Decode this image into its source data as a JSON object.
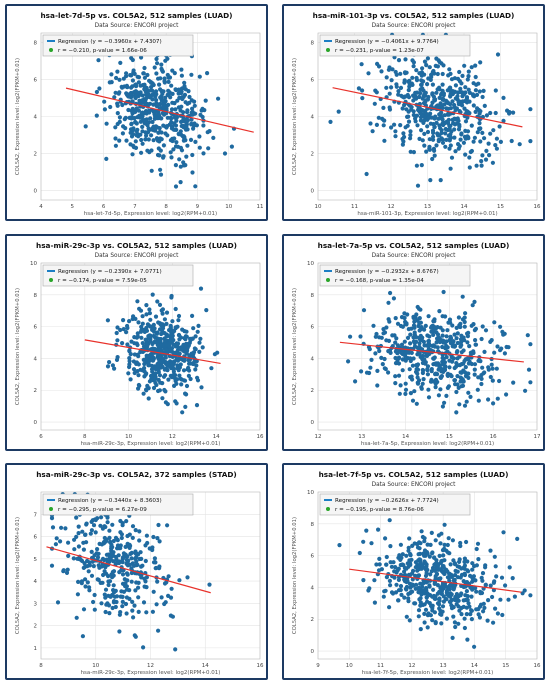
{
  "colors": {
    "point": "#1f6aa0",
    "line": "#e8322b",
    "border": "#1d3a63",
    "grid": "#e4e4e4",
    "legend_bg": "#f5f5f5"
  },
  "chart_data": [
    {
      "type": "scatter",
      "title": "hsa-let-7d-5p vs. COL5A2, 512 samples (LUAD)",
      "subtitle": "Data Source: ENCORI project",
      "xlabel": "hsa-let-7d-5p, Expression level: log2(RPM+0.01)",
      "ylabel": "COL5A2, Expression level: log2(FPKM+0.01)",
      "xlim": [
        4,
        11
      ],
      "ylim": [
        -0.5,
        8.5
      ],
      "xticks": [
        "4",
        "5",
        "6",
        "7",
        "8",
        "9",
        "10",
        "11"
      ],
      "yticks": [
        "0",
        "2",
        "4",
        "6",
        "8"
      ],
      "grid": true,
      "legend_position": "top-left",
      "legend": [
        "Regression (y = −0.3960x + 7.4307)",
        "r = −0.210, p-value = 1.66e-06"
      ],
      "regression": {
        "slope": -0.396,
        "intercept": 7.4307,
        "x_range": [
          4.8,
          10.8
        ]
      },
      "point_cloud": {
        "n": 512,
        "x_mean": 7.7,
        "x_sd": 0.75,
        "y_mean": 4.35,
        "y_sd": 1.35,
        "r": -0.21
      }
    },
    {
      "type": "scatter",
      "title": "hsa-miR-101-3p vs. COL5A2, 512 samples (LUAD)",
      "subtitle": "Data Source: ENCORI project",
      "xlabel": "hsa-miR-101-3p, Expression level: log2(RPM+0.01)",
      "ylabel": "COL5A2, Expression level: log2(FPKM+0.01)",
      "xlim": [
        10,
        16
      ],
      "ylim": [
        -0.5,
        8.5
      ],
      "xticks": [
        "10",
        "11",
        "12",
        "13",
        "14",
        "15",
        "16"
      ],
      "yticks": [
        "0",
        "2",
        "4",
        "6",
        "8"
      ],
      "grid": true,
      "legend_position": "top-left",
      "legend": [
        "Regression (y = −0.4061x + 9.7764)",
        "r = −0.231, p-value = 1.23e-07"
      ],
      "regression": {
        "slope": -0.4061,
        "intercept": 9.7764,
        "x_range": [
          10.4,
          15.6
        ]
      },
      "point_cloud": {
        "n": 512,
        "x_mean": 13.3,
        "x_sd": 0.85,
        "y_mean": 4.4,
        "y_sd": 1.4,
        "r": -0.23
      }
    },
    {
      "type": "scatter",
      "title": "hsa-miR-29c-3p vs. COL5A2, 512 samples (LUAD)",
      "subtitle": "Data Source: ENCORI project",
      "xlabel": "hsa-miR-29c-3p, Expression level: log2(RPM+0.01)",
      "ylabel": "COL5A2, Expression level: log2(FPKM+0.01)",
      "xlim": [
        6,
        16
      ],
      "ylim": [
        -0.5,
        10
      ],
      "xticks": [
        "6",
        "8",
        "10",
        "12",
        "14",
        "16"
      ],
      "yticks": [
        "0",
        "2",
        "4",
        "6",
        "8",
        "10"
      ],
      "grid": true,
      "legend_position": "top-left",
      "legend": [
        "Regression (y = −0.2390x + 7.0771)",
        "r = −0.174, p-value = 7.59e-05"
      ],
      "regression": {
        "slope": -0.239,
        "intercept": 7.0771,
        "x_range": [
          8.0,
          14.2
        ]
      },
      "point_cloud": {
        "n": 512,
        "x_mean": 11.5,
        "x_sd": 0.85,
        "y_mean": 4.35,
        "y_sd": 1.3,
        "r": -0.17
      }
    },
    {
      "type": "scatter",
      "title": "hsa-let-7a-5p vs. COL5A2, 512 samples (LUAD)",
      "subtitle": "Data Source: ENCORI project",
      "xlabel": "hsa-let-7a-5p, Expression level: log2(RPM+0.01)",
      "ylabel": "COL5A2, Expression level: log2(FPKM+0.01)",
      "xlim": [
        12,
        17
      ],
      "ylim": [
        -0.5,
        10
      ],
      "xticks": [
        "12",
        "13",
        "14",
        "15",
        "16",
        "17"
      ],
      "yticks": [
        "0",
        "2",
        "4",
        "6",
        "8",
        "10"
      ],
      "grid": true,
      "legend_position": "top-left",
      "legend": [
        "Regression (y = −0.2932x + 8.6767)",
        "r = −0.168, p-value = 1.35e-04"
      ],
      "regression": {
        "slope": -0.2932,
        "intercept": 8.6767,
        "x_range": [
          12.5,
          16.7
        ]
      },
      "point_cloud": {
        "n": 512,
        "x_mean": 14.7,
        "x_sd": 0.75,
        "y_mean": 4.35,
        "y_sd": 1.35,
        "r": -0.17
      }
    },
    {
      "type": "scatter",
      "title": "hsa-miR-29c-3p vs. COL5A2, 372 samples (STAD)",
      "subtitle": "",
      "xlabel": "hsa-miR-29c-3p, Expression level: log2(RPM+0.01)",
      "ylabel": "COL5A2, Expression level: log2(FPKM+0.01)",
      "xlim": [
        8,
        16
      ],
      "ylim": [
        0.5,
        8
      ],
      "xticks": [
        "8",
        "10",
        "12",
        "14",
        "16"
      ],
      "yticks": [
        "1",
        "2",
        "3",
        "4",
        "5",
        "6",
        "7"
      ],
      "grid": true,
      "legend_position": "top-left",
      "legend": [
        "Regression (y = −0.3440x + 8.3603)",
        "r = −0.295, p-value = 6.27e-09"
      ],
      "regression": {
        "slope": -0.344,
        "intercept": 8.3603,
        "x_range": [
          8.2,
          14.2
        ]
      },
      "point_cloud": {
        "n": 372,
        "x_mean": 10.8,
        "x_sd": 1.0,
        "y_mean": 4.65,
        "y_sd": 1.25,
        "r": -0.3
      }
    },
    {
      "type": "scatter",
      "title": "hsa-let-7f-5p vs. COL5A2, 512 samples (LUAD)",
      "subtitle": "Data Source: ENCORI project",
      "xlabel": "hsa-let-7f-5p, Expression level: log2(RPM+0.01)",
      "ylabel": "COL5A2, Expression level: log2(FPKM+0.01)",
      "xlim": [
        9,
        16
      ],
      "ylim": [
        -0.5,
        10
      ],
      "xticks": [
        "9",
        "10",
        "11",
        "12",
        "13",
        "14",
        "15",
        "16"
      ],
      "yticks": [
        "0",
        "2",
        "4",
        "6",
        "8",
        "10"
      ],
      "grid": true,
      "legend_position": "top-left",
      "legend": [
        "Regression (y = −0.2626x + 7.7724)",
        "r = −0.195, p-value = 8.76e-06"
      ],
      "regression": {
        "slope": -0.2626,
        "intercept": 7.7724,
        "x_range": [
          10.0,
          15.5
        ]
      },
      "point_cloud": {
        "n": 512,
        "x_mean": 12.8,
        "x_sd": 0.95,
        "y_mean": 4.4,
        "y_sd": 1.35,
        "r": -0.2
      }
    }
  ]
}
